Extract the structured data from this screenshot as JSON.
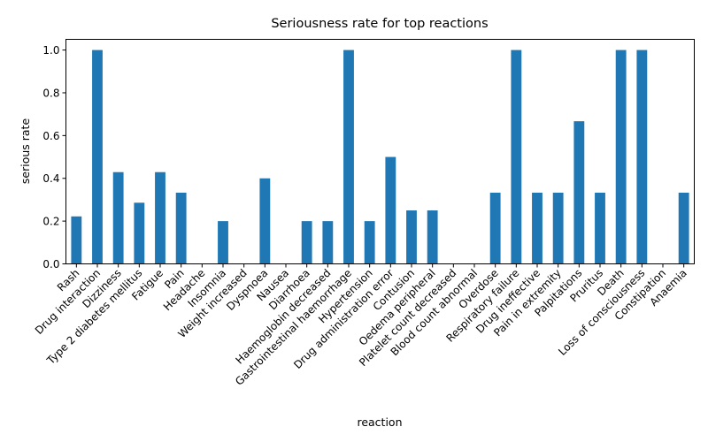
{
  "chart_data": {
    "type": "bar",
    "title": "Seriousness rate for top reactions",
    "xlabel": "reaction",
    "ylabel": "serious rate",
    "ylim": [
      0,
      1.05
    ],
    "yticks": [
      "0.0",
      "0.2",
      "0.4",
      "0.6",
      "0.8",
      "1.0"
    ],
    "color": "#1f77b4",
    "grid": false,
    "categories": [
      "Rash",
      "Drug interaction",
      "Dizziness",
      "Type 2 diabetes mellitus",
      "Fatigue",
      "Pain",
      "Headache",
      "Insomnia",
      "Weight increased",
      "Dyspnoea",
      "Nausea",
      "Diarrhoea",
      "Haemoglobin decreased",
      "Gastrointestinal haemorrhage",
      "Hypertension",
      "Drug administration error",
      "Contusion",
      "Oedema peripheral",
      "Platelet count decreased",
      "Blood count abnormal",
      "Overdose",
      "Respiratory failure",
      "Drug ineffective",
      "Pain in extremity",
      "Palpitations",
      "Pruritus",
      "Death",
      "Loss of consciousness",
      "Constipation",
      "Anaemia"
    ],
    "values": [
      0.222,
      1.0,
      0.429,
      0.286,
      0.429,
      0.333,
      0.0,
      0.2,
      0.0,
      0.4,
      0.0,
      0.2,
      0.2,
      1.0,
      0.2,
      0.5,
      0.25,
      0.25,
      0.0,
      0.0,
      0.333,
      1.0,
      0.333,
      0.333,
      0.667,
      0.333,
      1.0,
      1.0,
      0.0,
      0.333
    ]
  }
}
